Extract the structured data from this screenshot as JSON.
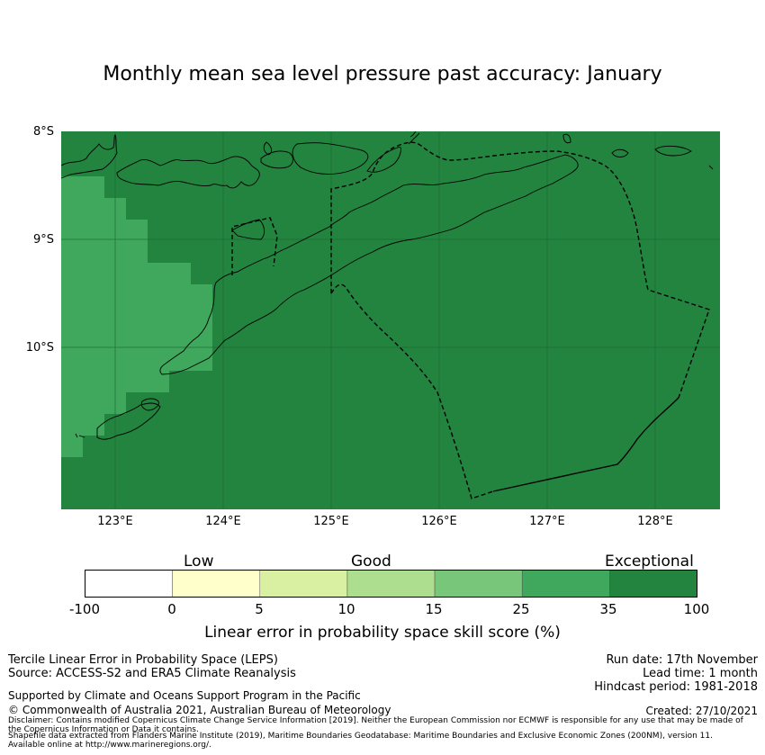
{
  "title": "Monthly mean sea level pressure past accuracy: January",
  "map": {
    "lat_labels": [
      "8°S",
      "9°S",
      "10°S"
    ],
    "lon_labels": [
      "123°E",
      "124°E",
      "125°E",
      "126°E",
      "127°E",
      "128°E"
    ],
    "colors": {
      "exceptional": "#23843f",
      "very_good": "#3fa85c",
      "good_high": "#78c679",
      "good": "#addd8e",
      "low_good": "#d9f0a3",
      "low": "#ffffcc",
      "none": "#ffffff"
    }
  },
  "colorbar": {
    "categories": [
      "Low",
      "Good",
      "Exceptional"
    ],
    "ticks": [
      "-100",
      "0",
      "5",
      "10",
      "15",
      "25",
      "35",
      "100"
    ],
    "colors": [
      "#ffffff",
      "#ffffcc",
      "#d9f0a3",
      "#addd8e",
      "#78c679",
      "#3fa85c",
      "#23843f"
    ],
    "label": "Linear error in probability space skill score (%)"
  },
  "footer": {
    "left_line1": "Tercile Linear Error in Probability Space (LEPS)",
    "left_line2": "Source: ACCESS-S2 and ERA5 Climate Reanalysis",
    "right_line1": "Run date: 17th November",
    "right_line2": "Lead time: 1 month",
    "right_line3": "Hindcast period: 1981-2018",
    "support": "Supported by Climate and Oceans Support Program in the Pacific",
    "copyright": "© Commonwealth of Australia 2021, Australian Bureau of Meteorology",
    "created": "Created: 27/10/2021",
    "disclaimer1": "Disclaimer: Contains modified Copernicus Climate Change Service Information [2019]. Neither the European Commission nor ECMWF is responsible for any use that may be made of",
    "disclaimer2": "the Copernicus Information or Data it contains.",
    "shapefile1": "Shapefile data extracted from Flanders Marine Institute (2019), Maritime Boundaries Geodatabase: Maritime Boundaries and Exclusive Economic Zones (200NM), version 11.",
    "shapefile2": "Available online at http://www.marineregions.org/."
  }
}
